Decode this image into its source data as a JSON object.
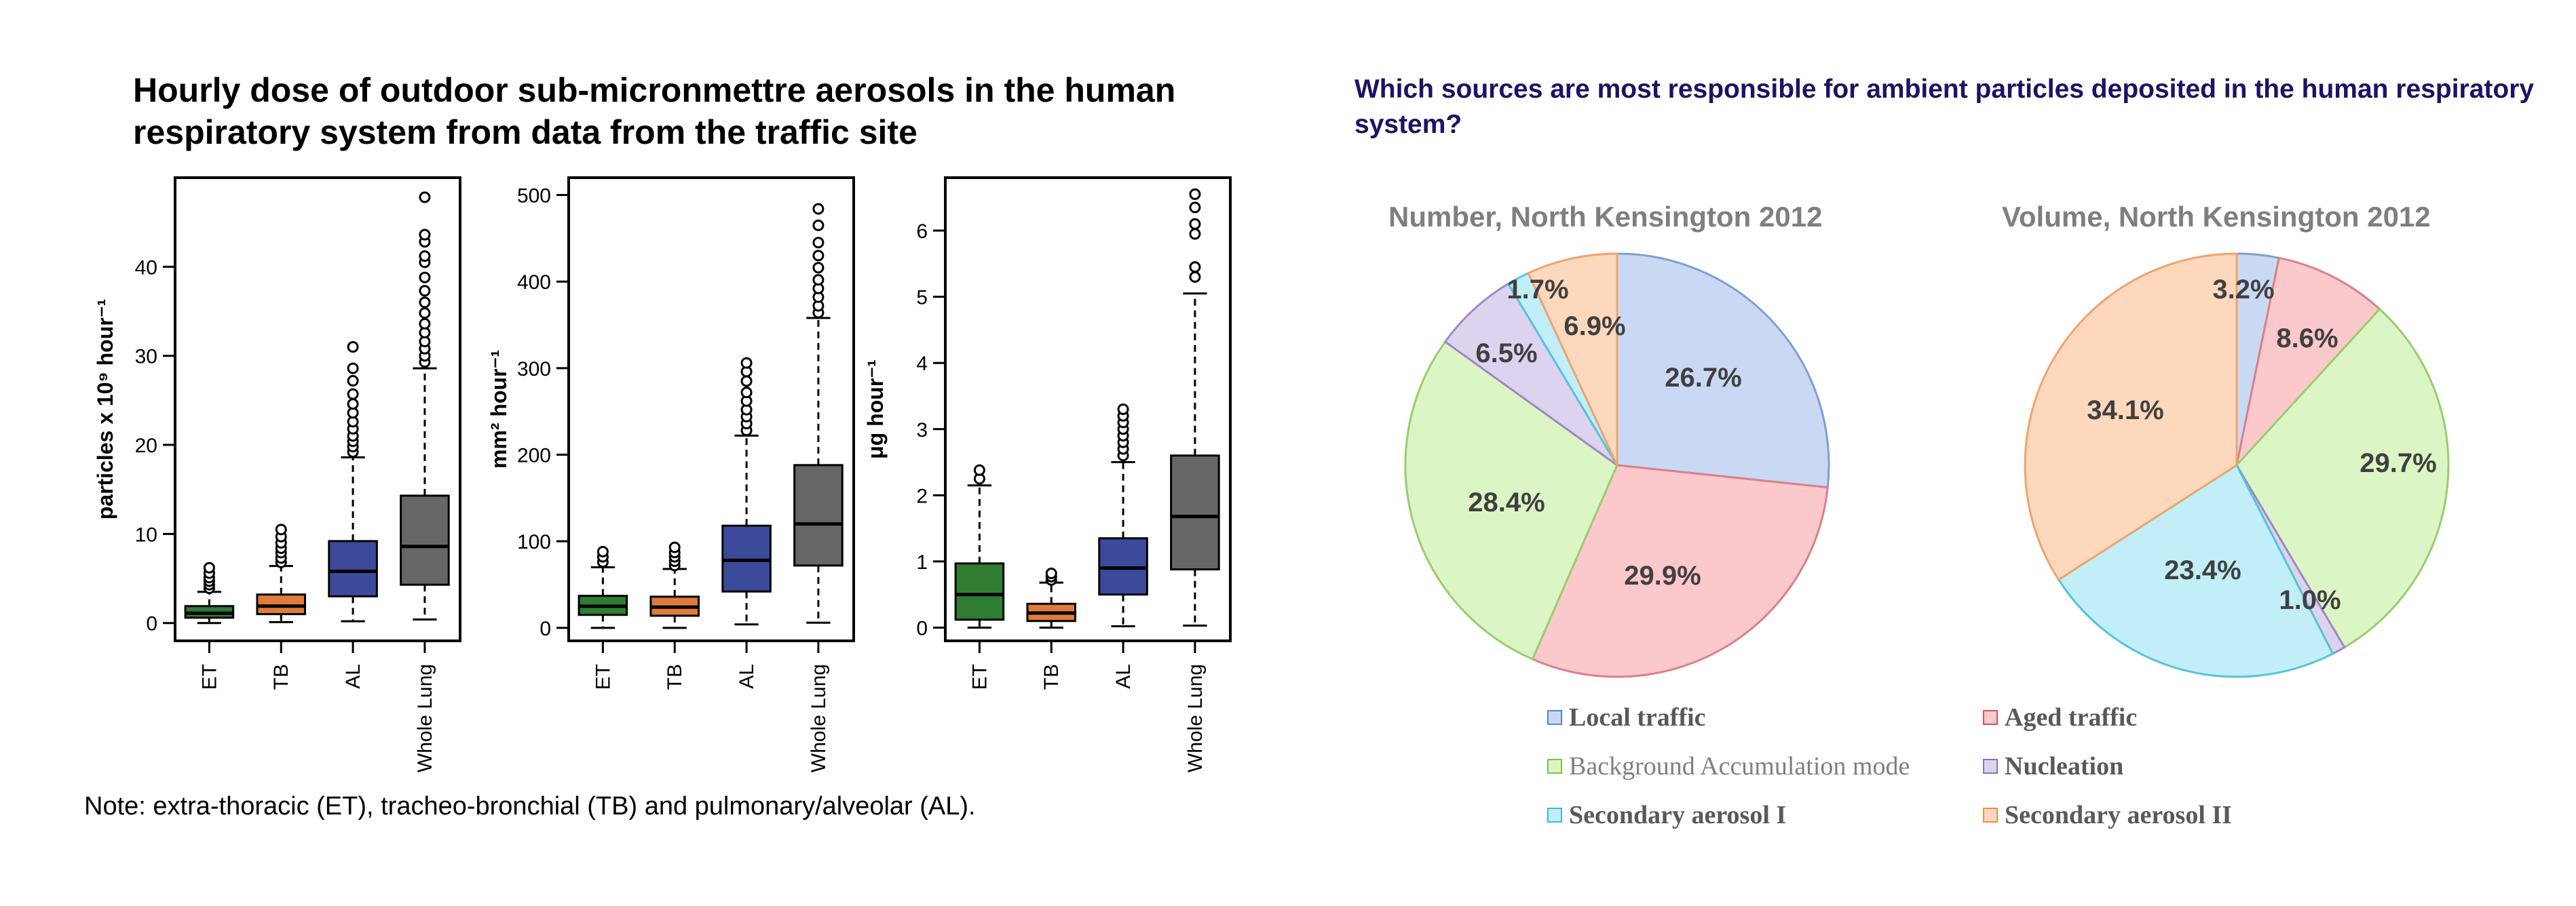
{
  "left_title": "Hourly dose of outdoor sub-micronmettre aerosols in the human respiratory system from data from the traffic site",
  "note": "Note: extra-thoracic (ET), tracheo-bronchial (TB) and pulmonary/alveolar (AL).",
  "right_title": "Which sources are most responsible for ambient particles deposited in the human respiratory system?",
  "colors": {
    "ET": "#2e7d32",
    "TB": "#e07b39",
    "AL": "#3c4a9c",
    "Whole Lung": "#666666"
  },
  "chart_data": [
    {
      "type": "box",
      "ylabel": "particles x 10⁹ hour⁻¹",
      "ylim": [
        -2,
        50
      ],
      "yticks": [
        0,
        10,
        20,
        30,
        40
      ],
      "categories": [
        "ET",
        "TB",
        "AL",
        "Whole Lung"
      ],
      "boxes": [
        {
          "q1": 0.6,
          "median": 1.1,
          "q3": 1.9,
          "whisker_low": 0,
          "whisker_high": 3.5,
          "outliers": [
            3.9,
            4.3,
            4.7,
            5.1,
            5.6,
            6.2
          ]
        },
        {
          "q1": 1.0,
          "median": 1.9,
          "q3": 3.2,
          "whisker_low": 0.1,
          "whisker_high": 6.4,
          "outliers": [
            6.8,
            7.3,
            7.9,
            8.4,
            9.0,
            9.7,
            10.5
          ]
        },
        {
          "q1": 3.0,
          "median": 5.8,
          "q3": 9.2,
          "whisker_low": 0.2,
          "whisker_high": 18.6,
          "outliers": [
            19.2,
            19.8,
            20.4,
            21.0,
            21.8,
            22.6,
            23.6,
            24.6,
            25.7,
            27.2,
            28.6,
            31.0
          ]
        },
        {
          "q1": 4.3,
          "median": 8.6,
          "q3": 14.3,
          "whisker_low": 0.4,
          "whisker_high": 28.6,
          "outliers": [
            29.3,
            30.0,
            30.8,
            31.6,
            32.6,
            33.6,
            34.8,
            36.0,
            37.3,
            38.8,
            40.5,
            41.2,
            42.8,
            43.6,
            47.8
          ]
        }
      ]
    },
    {
      "type": "box",
      "ylabel": "mm² hour⁻¹",
      "ylim": [
        -15,
        520
      ],
      "yticks": [
        0,
        100,
        200,
        300,
        400,
        500
      ],
      "categories": [
        "ET",
        "TB",
        "AL",
        "Whole Lung"
      ],
      "boxes": [
        {
          "q1": 15,
          "median": 25,
          "q3": 37,
          "whisker_low": 0,
          "whisker_high": 70,
          "outliers": [
            76,
            82,
            88
          ]
        },
        {
          "q1": 14,
          "median": 24,
          "q3": 36,
          "whisker_low": 0,
          "whisker_high": 68,
          "outliers": [
            72,
            77,
            82,
            87,
            93
          ]
        },
        {
          "q1": 42,
          "median": 78,
          "q3": 118,
          "whisker_low": 4,
          "whisker_high": 222,
          "outliers": [
            228,
            236,
            244,
            252,
            262,
            272,
            285,
            296,
            306
          ]
        },
        {
          "q1": 72,
          "median": 120,
          "q3": 188,
          "whisker_low": 6,
          "whisker_high": 358,
          "outliers": [
            364,
            372,
            382,
            392,
            402,
            416,
            430,
            445,
            465,
            484
          ]
        }
      ]
    },
    {
      "type": "box",
      "ylabel": "μg hour⁻¹",
      "ylim": [
        -0.2,
        6.8
      ],
      "yticks": [
        0,
        1,
        2,
        3,
        4,
        5,
        6
      ],
      "categories": [
        "ET",
        "TB",
        "AL",
        "Whole Lung"
      ],
      "boxes": [
        {
          "q1": 0.12,
          "median": 0.5,
          "q3": 0.97,
          "whisker_low": 0,
          "whisker_high": 2.15,
          "outliers": [
            2.25,
            2.38
          ]
        },
        {
          "q1": 0.1,
          "median": 0.22,
          "q3": 0.36,
          "whisker_low": 0,
          "whisker_high": 0.68,
          "outliers": [
            0.72,
            0.77,
            0.82
          ]
        },
        {
          "q1": 0.5,
          "median": 0.9,
          "q3": 1.35,
          "whisker_low": 0.02,
          "whisker_high": 2.5,
          "outliers": [
            2.6,
            2.7,
            2.8,
            2.9,
            3.0,
            3.1,
            3.2,
            3.3
          ]
        },
        {
          "q1": 0.88,
          "median": 1.68,
          "q3": 2.6,
          "whisker_low": 0.03,
          "whisker_high": 5.05,
          "outliers": [
            5.3,
            5.45,
            5.95,
            6.1,
            6.35,
            6.55
          ]
        }
      ]
    },
    {
      "type": "pie",
      "title": "Number, North Kensington 2012",
      "slices": [
        {
          "label": "Local traffic",
          "value": 26.7,
          "text": "26.7%",
          "color": "#c9d9f4",
          "edge": "#7f9ed0"
        },
        {
          "label": "Aged traffic",
          "value": 29.9,
          "text": "29.9%",
          "color": "#fbc8cc",
          "edge": "#d9808a"
        },
        {
          "label": "Background Accumulation mode",
          "value": 28.4,
          "text": "28.4%",
          "color": "#dcf5c4",
          "edge": "#9acd6e"
        },
        {
          "label": "Nucleation",
          "value": 6.5,
          "text": "6.5%",
          "color": "#ddd3ef",
          "edge": "#9e89c4"
        },
        {
          "label": "Secondary aerosol I",
          "value": 1.7,
          "text": "1.7%",
          "color": "#c2eef8",
          "edge": "#55c3dc"
        },
        {
          "label": "Secondary aerosol II",
          "value": 6.9,
          "text": "6.9%",
          "color": "#fdd8bc",
          "edge": "#eea46e"
        }
      ]
    },
    {
      "type": "pie",
      "title": "Volume, North Kensington 2012",
      "slices": [
        {
          "label": "Local traffic",
          "value": 3.2,
          "text": "3.2%",
          "color": "#c9d9f4",
          "edge": "#7f9ed0"
        },
        {
          "label": "Aged traffic",
          "value": 8.6,
          "text": "8.6%",
          "color": "#fbc8cc",
          "edge": "#d9808a"
        },
        {
          "label": "Background Accumulation mode",
          "value": 29.7,
          "text": "29.7%",
          "color": "#dcf5c4",
          "edge": "#9acd6e"
        },
        {
          "label": "Nucleation",
          "value": 1.0,
          "text": "1.0%",
          "color": "#ddd3ef",
          "edge": "#9e89c4"
        },
        {
          "label": "Secondary aerosol I",
          "value": 23.4,
          "text": "23.4%",
          "color": "#c2eef8",
          "edge": "#55c3dc"
        },
        {
          "label": "Secondary aerosol II",
          "value": 34.1,
          "text": "34.1%",
          "color": "#fdd8bc",
          "edge": "#eea46e"
        }
      ]
    }
  ],
  "legend": [
    {
      "label": "Local traffic",
      "color": "#c9d9f4",
      "edge": "#5b84c4"
    },
    {
      "label": "Aged traffic",
      "color": "#fbc8cc",
      "edge": "#d05060"
    },
    {
      "label": "Background Accumulation mode",
      "color": "#dcf5c4",
      "edge": "#7fbf4a"
    },
    {
      "label": "Nucleation",
      "color": "#ddd3ef",
      "edge": "#8a6fc0"
    },
    {
      "label": "Secondary aerosol I",
      "color": "#c2eef8",
      "edge": "#3fb8d8"
    },
    {
      "label": "Secondary aerosol II",
      "color": "#fdd8bc",
      "edge": "#e8904a"
    }
  ]
}
